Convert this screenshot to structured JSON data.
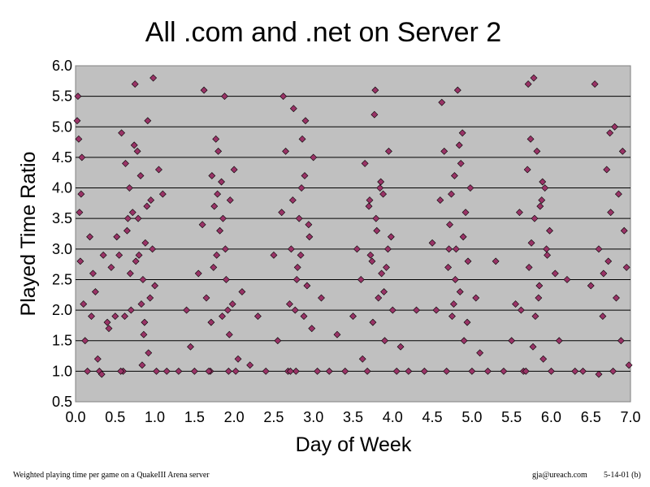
{
  "chart_data": {
    "type": "scatter",
    "title": "All .com and .net on Server 2",
    "xlabel": "Day of Week",
    "ylabel": "Played Time Ratio",
    "xlim": [
      0.0,
      7.0
    ],
    "ylim": [
      0.5,
      6.0
    ],
    "x_ticks": [
      "0.0",
      "0.5",
      "1.0",
      "1.5",
      "2.0",
      "2.5",
      "3.0",
      "3.5",
      "4.0",
      "4.5",
      "5.0",
      "5.5",
      "6.0",
      "6.5",
      "7.0"
    ],
    "y_ticks": [
      "0.5",
      "1.0",
      "1.5",
      "2.0",
      "2.5",
      "3.0",
      "3.5",
      "4.0",
      "4.5",
      "5.0",
      "5.5",
      "6.0"
    ],
    "grid": "horizontal",
    "background_color": "#c0c0c0",
    "marker_color": "#993366",
    "marker": "diamond",
    "series": [
      {
        "x": [
          0.02,
          0.04,
          0.06,
          0.1,
          0.15,
          0.05,
          0.08,
          0.12,
          0.2,
          0.25,
          0.3,
          0.35,
          0.4,
          0.03,
          0.07,
          0.18,
          0.22,
          0.28,
          0.33,
          0.42,
          0.55,
          0.62,
          0.68,
          0.72,
          0.75,
          0.78,
          0.82,
          0.85,
          0.88,
          0.92,
          0.95,
          0.98,
          1.02,
          1.05,
          0.6,
          0.65,
          0.7,
          0.74,
          0.8,
          0.86,
          0.9,
          0.94,
          0.58,
          0.66,
          0.76,
          0.84,
          1.1,
          1.15,
          0.45,
          0.5,
          0.52,
          0.57,
          0.63,
          0.69,
          0.79,
          0.83,
          0.87,
          0.91,
          0.97,
          1.0,
          1.3,
          1.4,
          1.45,
          1.5,
          1.55,
          1.6,
          1.65,
          1.7,
          1.72,
          1.75,
          1.78,
          1.8,
          1.82,
          1.85,
          1.88,
          1.9,
          1.93,
          1.95,
          1.98,
          2.0,
          1.68,
          1.74,
          1.79,
          1.84,
          1.89,
          1.94,
          2.05,
          2.1,
          1.62,
          1.71,
          1.77,
          1.86,
          1.92,
          2.02,
          2.2,
          2.3,
          2.4,
          2.5,
          2.55,
          2.6,
          2.65,
          2.7,
          2.72,
          2.75,
          2.78,
          2.8,
          2.82,
          2.85,
          2.88,
          2.9,
          2.92,
          2.95,
          2.98,
          3.0,
          3.05,
          3.1,
          2.68,
          2.74,
          2.79,
          2.84,
          2.89,
          2.94,
          2.62,
          2.71,
          2.77,
          2.86,
          3.2,
          3.3,
          3.4,
          3.5,
          3.55,
          3.6,
          3.65,
          3.7,
          3.72,
          3.75,
          3.78,
          3.8,
          3.82,
          3.85,
          3.88,
          3.9,
          3.92,
          3.95,
          3.98,
          4.0,
          4.05,
          4.1,
          3.68,
          3.74,
          3.79,
          3.84,
          3.89,
          3.94,
          3.62,
          3.71,
          3.77,
          3.86,
          4.2,
          4.3,
          4.4,
          4.5,
          4.55,
          4.6,
          4.65,
          4.7,
          4.72,
          4.75,
          4.78,
          4.8,
          4.82,
          4.85,
          4.88,
          4.9,
          4.92,
          4.95,
          4.98,
          5.0,
          5.05,
          5.1,
          4.68,
          4.74,
          4.79,
          4.84,
          4.89,
          4.94,
          4.62,
          4.71,
          4.77,
          4.86,
          5.2,
          5.3,
          5.4,
          5.5,
          5.55,
          5.6,
          5.65,
          5.7,
          5.72,
          5.75,
          5.78,
          5.8,
          5.82,
          5.85,
          5.88,
          5.9,
          5.92,
          5.95,
          5.98,
          6.0,
          6.05,
          6.1,
          5.68,
          5.74,
          5.79,
          5.84,
          5.89,
          5.94,
          5.62,
          5.71,
          5.77,
          5.86,
          6.2,
          6.3,
          6.4,
          6.5,
          6.55,
          6.6,
          6.65,
          6.7,
          6.72,
          6.75,
          6.78,
          6.8,
          6.82,
          6.85,
          6.88,
          6.9,
          6.92,
          6.95,
          6.98,
          6.6,
          6.66,
          6.74
        ],
        "y": [
          5.1,
          4.8,
          2.8,
          2.1,
          1.0,
          3.6,
          4.5,
          1.5,
          1.9,
          2.3,
          1.0,
          2.9,
          1.8,
          5.5,
          3.9,
          3.2,
          2.6,
          1.2,
          0.95,
          1.7,
          2.9,
          1.9,
          4.0,
          3.6,
          5.7,
          4.6,
          4.2,
          2.5,
          3.1,
          1.3,
          3.8,
          5.8,
          1.0,
          4.3,
          1.0,
          3.3,
          2.0,
          4.7,
          2.9,
          1.6,
          3.7,
          2.2,
          4.9,
          3.5,
          2.8,
          1.1,
          3.9,
          1.0,
          2.7,
          1.9,
          3.2,
          1.0,
          4.4,
          2.6,
          3.5,
          2.1,
          1.8,
          5.1,
          3.0,
          2.4,
          1.0,
          2.0,
          1.4,
          1.0,
          2.6,
          3.4,
          2.2,
          1.0,
          4.2,
          3.7,
          2.9,
          4.6,
          3.3,
          1.9,
          5.5,
          2.5,
          1.0,
          3.8,
          2.1,
          4.3,
          1.0,
          2.7,
          3.9,
          4.1,
          3.0,
          1.6,
          1.2,
          2.3,
          5.6,
          1.8,
          4.8,
          3.5,
          2.0,
          1.0,
          1.1,
          1.9,
          1.0,
          2.9,
          1.5,
          3.6,
          4.6,
          2.1,
          3.0,
          5.3,
          1.0,
          2.7,
          3.5,
          4.0,
          1.9,
          5.1,
          2.4,
          3.2,
          1.7,
          4.5,
          1.0,
          2.2,
          1.0,
          3.8,
          2.5,
          2.9,
          4.2,
          3.4,
          5.5,
          1.0,
          2.0,
          4.8,
          1.0,
          1.6,
          1.0,
          1.9,
          3.0,
          2.5,
          4.4,
          3.7,
          2.9,
          1.8,
          5.6,
          3.3,
          2.2,
          4.1,
          3.9,
          1.5,
          2.7,
          4.6,
          3.2,
          2.0,
          1.0,
          1.4,
          1.0,
          2.8,
          3.5,
          4.0,
          2.3,
          3.0,
          1.2,
          3.8,
          5.2,
          2.6,
          1.0,
          2.0,
          1.0,
          3.1,
          2.0,
          3.8,
          4.6,
          2.7,
          3.4,
          1.9,
          4.2,
          3.0,
          5.6,
          2.3,
          4.9,
          1.5,
          3.6,
          2.8,
          4.0,
          1.0,
          2.2,
          1.3,
          1.0,
          3.9,
          2.5,
          4.7,
          3.2,
          1.8,
          5.4,
          3.0,
          2.1,
          4.4,
          1.0,
          2.8,
          1.0,
          1.5,
          2.1,
          3.6,
          1.0,
          4.3,
          2.7,
          3.1,
          5.8,
          1.9,
          4.6,
          2.4,
          3.8,
          1.2,
          4.0,
          2.9,
          3.3,
          1.0,
          2.6,
          1.5,
          1.0,
          4.8,
          3.5,
          2.2,
          4.1,
          3.0,
          2.0,
          5.7,
          1.4,
          3.7,
          2.5,
          1.0,
          1.0,
          2.4,
          5.7,
          3.0,
          1.9,
          4.3,
          2.8,
          3.6,
          1.0,
          5.0,
          2.2,
          3.9,
          1.5,
          4.6,
          3.3,
          2.7,
          1.1,
          0.95,
          2.6,
          4.9
        ]
      }
    ]
  },
  "footer": {
    "left": "Weighted playing time per game on a QuakeIII Arena server",
    "email": "gja@ureach.com",
    "date": "5-14-01 (b)"
  }
}
